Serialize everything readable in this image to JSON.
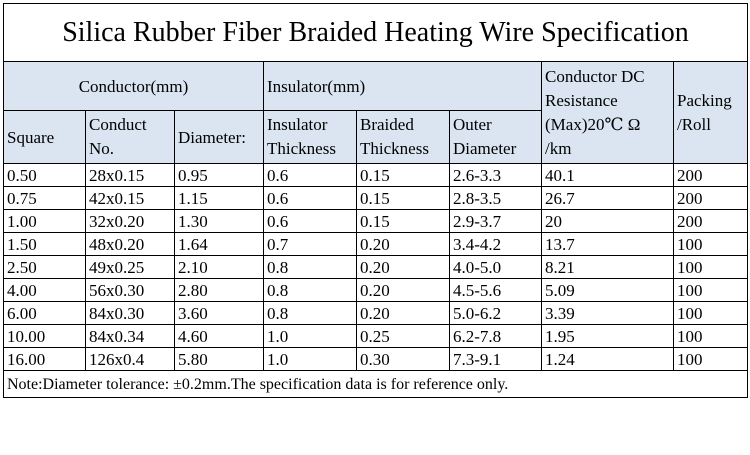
{
  "title": "Silica Rubber Fiber Braided Heating Wire Specification",
  "groups": {
    "conductor": "Conductor(mm)",
    "insulator": "Insulator(mm)",
    "resistance": "Conductor DC Resistance (Max)20℃ Ω /km",
    "packing": "Packing /Roll"
  },
  "columns": {
    "square": "Square",
    "conduct_no": "Conduct No.",
    "diameter": "Diameter:",
    "insulator_thickness": "Insulator Thickness",
    "braided_thickness": "Braided Thickness",
    "outer_diameter": "Outer Diameter"
  },
  "rows": [
    [
      "0.50",
      "28x0.15",
      "0.95",
      "0.6",
      "0.15",
      "2.6-3.3",
      "40.1",
      "200"
    ],
    [
      "0.75",
      "42x0.15",
      "1.15",
      "0.6",
      "0.15",
      "2.8-3.5",
      "26.7",
      "200"
    ],
    [
      "1.00",
      "32x0.20",
      "1.30",
      "0.6",
      "0.15",
      "2.9-3.7",
      "20",
      "200"
    ],
    [
      "1.50",
      "48x0.20",
      "1.64",
      "0.7",
      "0.20",
      "3.4-4.2",
      "13.7",
      "100"
    ],
    [
      "2.50",
      "49x0.25",
      "2.10",
      "0.8",
      "0.20",
      "4.0-5.0",
      "8.21",
      "100"
    ],
    [
      "4.00",
      "56x0.30",
      "2.80",
      "0.8",
      "0.20",
      "4.5-5.6",
      "5.09",
      "100"
    ],
    [
      "6.00",
      "84x0.30",
      "3.60",
      "0.8",
      "0.20",
      "5.0-6.2",
      "3.39",
      "100"
    ],
    [
      "10.00",
      "84x0.34",
      "4.60",
      "1.0",
      "0.25",
      "6.2-7.8",
      "1.95",
      "100"
    ],
    [
      "16.00",
      "126x0.4",
      "5.80",
      "1.0",
      "0.30",
      "7.3-9.1",
      "1.24",
      "100"
    ]
  ],
  "note": "Note:Diameter tolerance: ±0.2mm.The specification data is for reference only."
}
